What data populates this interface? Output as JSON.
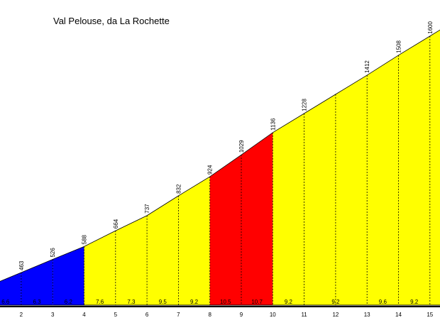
{
  "chart_data": {
    "type": "area",
    "title": "Val Pelouse, da La Rochette",
    "xlabel": "",
    "ylabel": "",
    "x": [
      2,
      3,
      4,
      5,
      6,
      7,
      8,
      9,
      10,
      11,
      12,
      13,
      14,
      15
    ],
    "altitudes": [
      463,
      526,
      588,
      664,
      737,
      832,
      924,
      1029,
      1136,
      1228,
      null,
      1412,
      1508,
      1600
    ],
    "altitude_labels": [
      "463",
      "526",
      "588",
      "664",
      "737",
      "832",
      "924",
      "1029",
      "1136",
      "1228",
      "",
      "1412",
      "1508",
      "1600"
    ],
    "km_labels": [
      "2",
      "3",
      "4",
      "5",
      "6",
      "7",
      "8",
      "9",
      "10",
      "11",
      "12",
      "13",
      "14",
      "15"
    ],
    "segments": [
      {
        "from": 1,
        "to": 2,
        "gradient": "6.6",
        "color": "#0000ff"
      },
      {
        "from": 2,
        "to": 3,
        "gradient": "6.3",
        "color": "#0000ff"
      },
      {
        "from": 3,
        "to": 4,
        "gradient": "6.2",
        "color": "#0000ff"
      },
      {
        "from": 4,
        "to": 5,
        "gradient": "7.6",
        "color": "#ffff00"
      },
      {
        "from": 5,
        "to": 6,
        "gradient": "7.3",
        "color": "#ffff00"
      },
      {
        "from": 6,
        "to": 7,
        "gradient": "9.5",
        "color": "#ffff00"
      },
      {
        "from": 7,
        "to": 8,
        "gradient": "9.2",
        "color": "#ffff00"
      },
      {
        "from": 8,
        "to": 9,
        "gradient": "10.5",
        "color": "#ff0000"
      },
      {
        "from": 9,
        "to": 10,
        "gradient": "10.7",
        "color": "#ff0000"
      },
      {
        "from": 10,
        "to": 11,
        "gradient": "9.2",
        "color": "#ffff00"
      },
      {
        "from": 11,
        "to": 13,
        "gradient": "9.2",
        "color": "#ffff00"
      },
      {
        "from": 13,
        "to": 14,
        "gradient": "9.6",
        "color": "#ffff00"
      },
      {
        "from": 14,
        "to": 15,
        "gradient": "9.2",
        "color": "#ffff00"
      }
    ],
    "colors": {
      "background": "#ffffff",
      "outline": "#000000"
    },
    "grid": false,
    "legend": "none"
  }
}
